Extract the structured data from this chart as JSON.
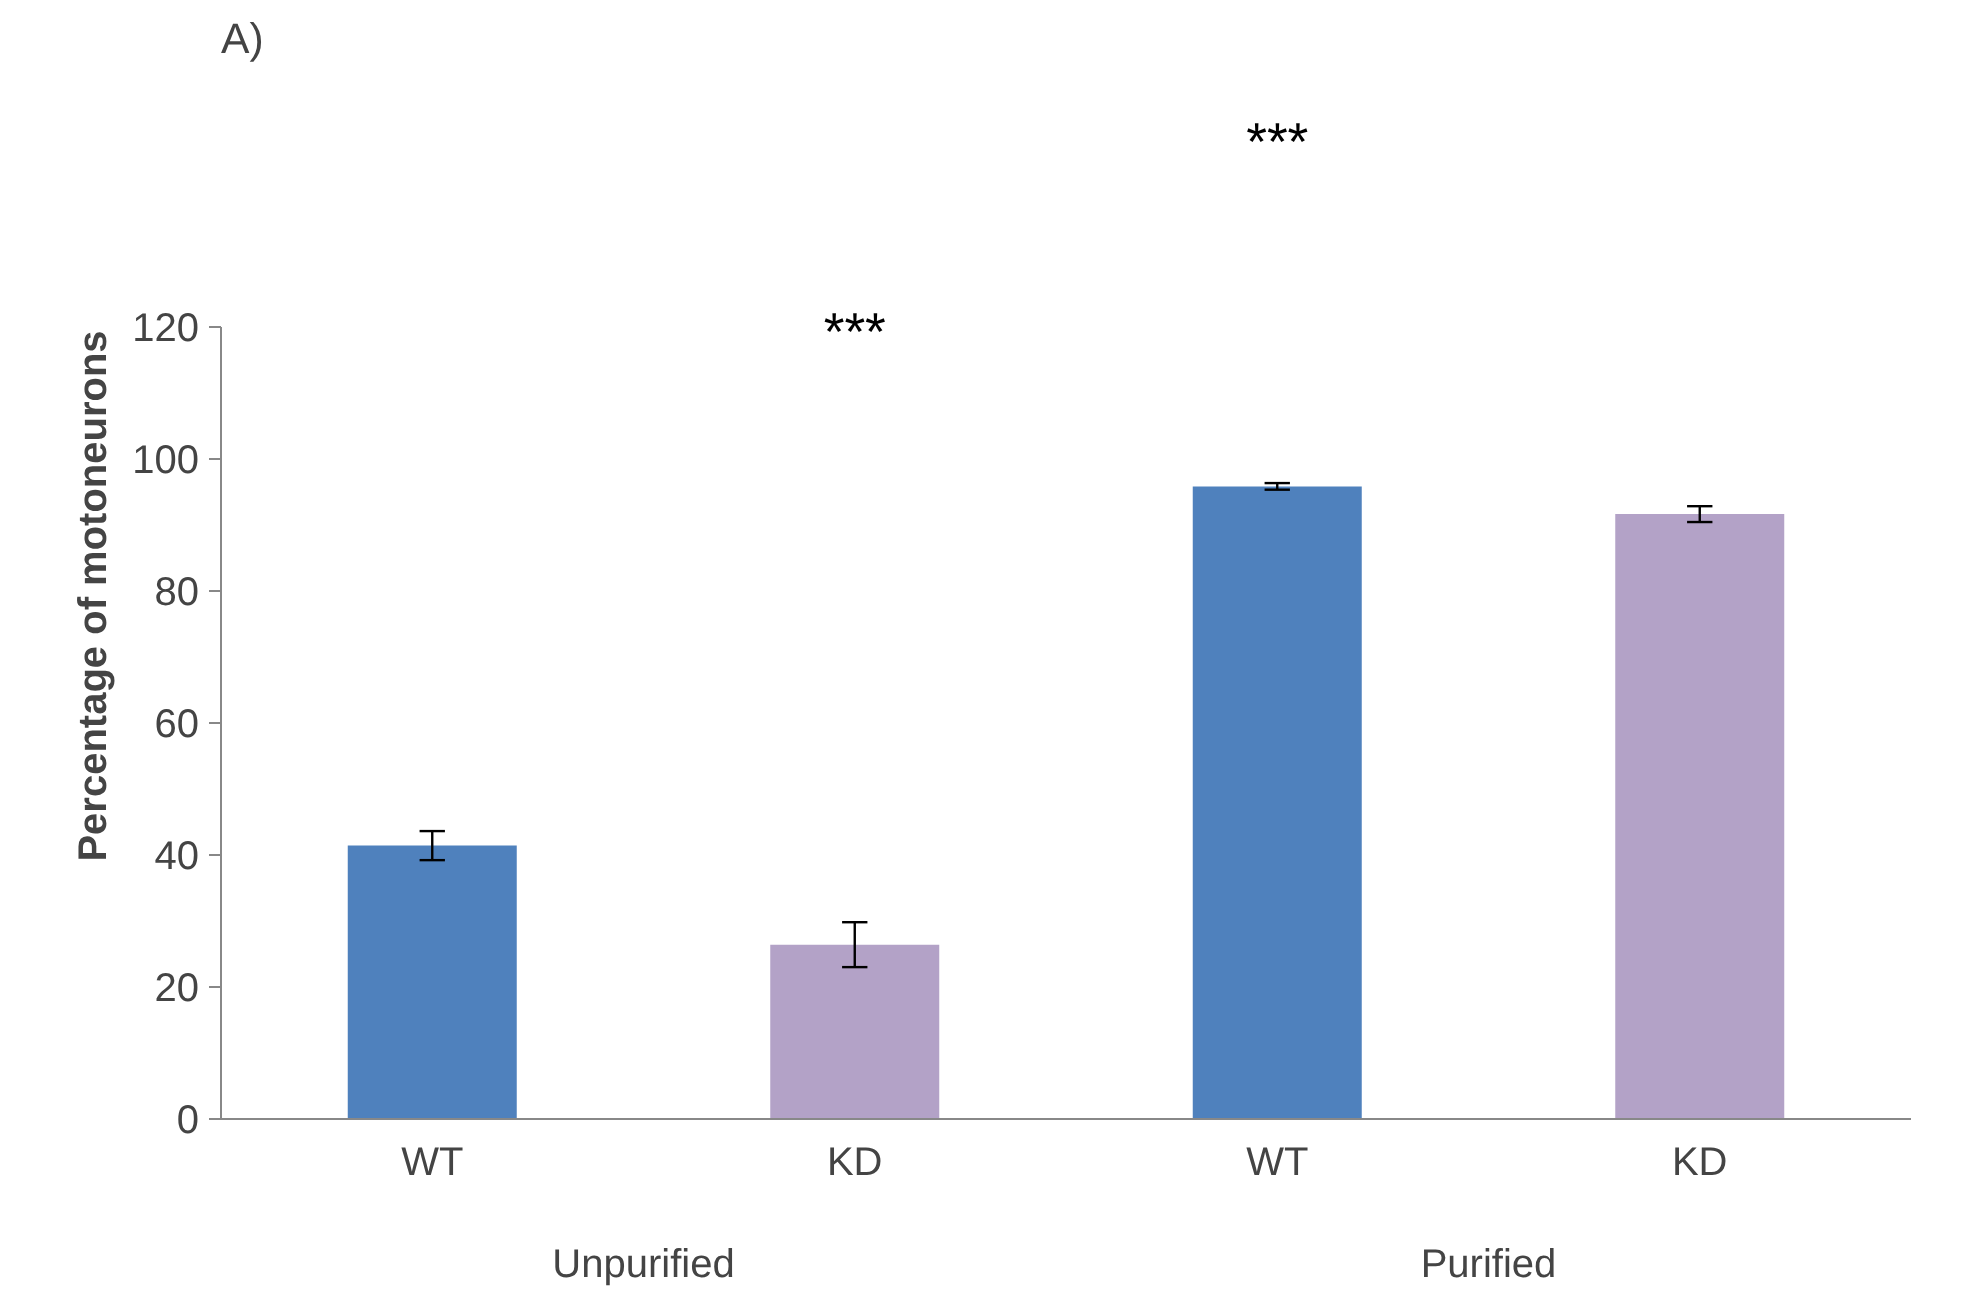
{
  "chart_data": {
    "type": "bar",
    "title": "A)",
    "ylabel": "Percentage of motoneurons",
    "categories": [
      "WT",
      "KD",
      "WT",
      "KD"
    ],
    "values": [
      41.4,
      26.4,
      95.8,
      91.6
    ],
    "colors": [
      "#4f81bd",
      "#b3a2c7",
      "#4f81bd",
      "#b3a2c7"
    ],
    "errors": [
      2.2,
      3.4,
      0.5,
      1.2
    ],
    "ylim": [
      0,
      120
    ],
    "yticks": [
      0,
      20,
      40,
      60,
      80,
      100,
      120
    ],
    "grid": false,
    "annotations": [
      "***",
      "***",
      "Unpurified",
      "Purified"
    ]
  }
}
